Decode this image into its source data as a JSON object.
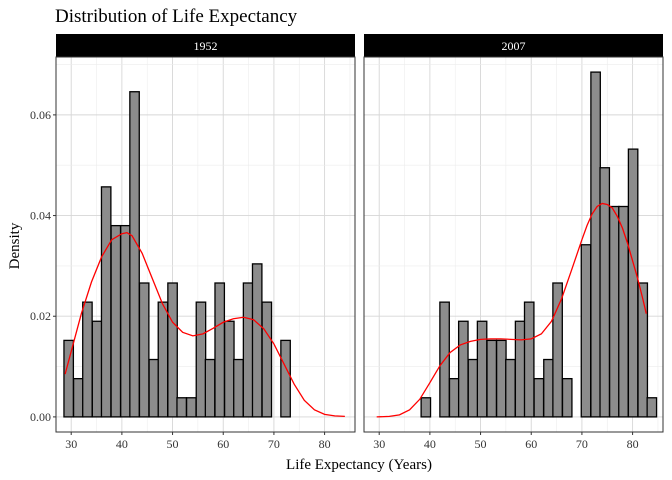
{
  "chart_data": {
    "type": "bar",
    "title": "Distribution of Life Expectancy",
    "xlabel": "Life Expectancy (Years)",
    "ylabel": "Density",
    "xlim": [
      27,
      86
    ],
    "ylim": [
      -0.003,
      0.0715
    ],
    "x_ticks": [
      30,
      40,
      50,
      60,
      70,
      80
    ],
    "y_ticks": [
      0.0,
      0.02,
      0.04,
      0.06
    ],
    "y_tick_labels": [
      "0.00",
      "0.02",
      "0.04",
      "0.06"
    ],
    "bin_width": 1.86,
    "grid": true,
    "bar_color": "#8c8c8c",
    "density_color": "#ff0000",
    "panels": [
      {
        "strip_label": "1952",
        "bins": [
          {
            "x": 29.5,
            "density": 0.0152
          },
          {
            "x": 31.4,
            "density": 0.0076
          },
          {
            "x": 33.2,
            "density": 0.0228
          },
          {
            "x": 35.1,
            "density": 0.019
          },
          {
            "x": 36.9,
            "density": 0.0457
          },
          {
            "x": 38.8,
            "density": 0.038
          },
          {
            "x": 40.7,
            "density": 0.038
          },
          {
            "x": 42.5,
            "density": 0.0646
          },
          {
            "x": 44.4,
            "density": 0.0266
          },
          {
            "x": 46.3,
            "density": 0.0114
          },
          {
            "x": 48.1,
            "density": 0.0228
          },
          {
            "x": 50.0,
            "density": 0.0266
          },
          {
            "x": 51.8,
            "density": 0.0038
          },
          {
            "x": 53.7,
            "density": 0.0038
          },
          {
            "x": 55.6,
            "density": 0.0228
          },
          {
            "x": 57.4,
            "density": 0.0114
          },
          {
            "x": 59.3,
            "density": 0.0266
          },
          {
            "x": 61.2,
            "density": 0.019
          },
          {
            "x": 63.0,
            "density": 0.0114
          },
          {
            "x": 64.9,
            "density": 0.0266
          },
          {
            "x": 66.7,
            "density": 0.0304
          },
          {
            "x": 68.6,
            "density": 0.0228
          },
          {
            "x": 70.5,
            "density": 0.0
          },
          {
            "x": 72.3,
            "density": 0.0152
          }
        ],
        "density_curve": {
          "x": [
            28.8,
            30,
            32,
            34,
            36,
            38,
            40,
            41,
            42,
            44,
            46,
            48,
            50,
            52,
            54,
            56,
            58,
            60,
            62,
            64,
            66,
            68,
            70,
            72,
            74,
            76,
            78,
            80,
            82,
            84
          ],
          "y": [
            0.0085,
            0.013,
            0.0205,
            0.0268,
            0.0318,
            0.0352,
            0.0364,
            0.0366,
            0.036,
            0.0325,
            0.0275,
            0.0225,
            0.0188,
            0.0168,
            0.0161,
            0.0165,
            0.0176,
            0.0188,
            0.0195,
            0.0198,
            0.0193,
            0.0175,
            0.0145,
            0.0105,
            0.0065,
            0.0033,
            0.0014,
            0.0005,
            0.0002,
            0.0001
          ]
        }
      },
      {
        "strip_label": "2007",
        "bins": [
          {
            "x": 39.2,
            "density": 0.0038
          },
          {
            "x": 41.0,
            "density": 0.0
          },
          {
            "x": 42.9,
            "density": 0.0228
          },
          {
            "x": 44.8,
            "density": 0.0076
          },
          {
            "x": 46.6,
            "density": 0.019
          },
          {
            "x": 48.5,
            "density": 0.0114
          },
          {
            "x": 50.3,
            "density": 0.019
          },
          {
            "x": 52.2,
            "density": 0.0152
          },
          {
            "x": 54.1,
            "density": 0.0152
          },
          {
            "x": 55.9,
            "density": 0.0114
          },
          {
            "x": 57.8,
            "density": 0.019
          },
          {
            "x": 59.6,
            "density": 0.0228
          },
          {
            "x": 61.5,
            "density": 0.0076
          },
          {
            "x": 63.4,
            "density": 0.0114
          },
          {
            "x": 65.2,
            "density": 0.0266
          },
          {
            "x": 67.1,
            "density": 0.0076
          },
          {
            "x": 68.9,
            "density": 0.0
          },
          {
            "x": 70.8,
            "density": 0.0342
          },
          {
            "x": 72.7,
            "density": 0.0685
          },
          {
            "x": 74.5,
            "density": 0.0495
          },
          {
            "x": 76.4,
            "density": 0.0418
          },
          {
            "x": 78.2,
            "density": 0.0418
          },
          {
            "x": 80.1,
            "density": 0.0532
          },
          {
            "x": 82.0,
            "density": 0.0266
          },
          {
            "x": 83.8,
            "density": 0.0038
          }
        ],
        "density_curve": {
          "x": [
            29.5,
            32,
            34,
            36,
            38,
            40,
            42,
            44,
            46,
            48,
            50,
            52,
            54,
            56,
            58,
            60,
            62,
            64,
            66,
            68,
            70,
            71,
            72,
            73,
            74,
            75,
            76,
            77,
            78,
            79,
            80,
            81,
            82,
            82.7
          ],
          "y": [
            0.0,
            0.0001,
            0.0004,
            0.0014,
            0.0035,
            0.0068,
            0.0102,
            0.0128,
            0.0143,
            0.015,
            0.0154,
            0.0155,
            0.0155,
            0.0154,
            0.0153,
            0.0155,
            0.0165,
            0.019,
            0.0235,
            0.0293,
            0.0352,
            0.038,
            0.0403,
            0.0418,
            0.0424,
            0.0422,
            0.0415,
            0.0398,
            0.0375,
            0.0345,
            0.031,
            0.0275,
            0.0235,
            0.0205
          ]
        }
      }
    ]
  }
}
